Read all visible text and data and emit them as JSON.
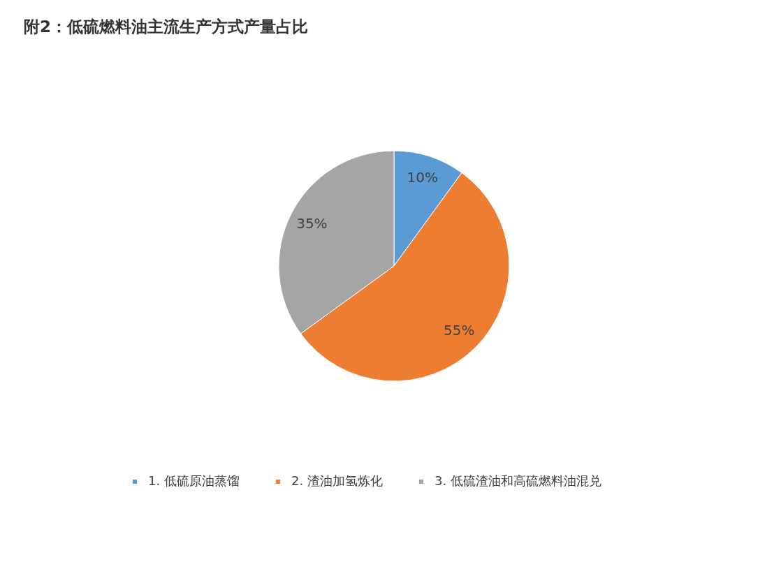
{
  "chart_data": {
    "type": "pie",
    "title": "附2：低硫燃料油主流生产方式产量占比",
    "categories": [
      "1.  低硫原油蒸馏",
      "2.  渣油加氢炼化",
      "3.  低硫渣油和高硫燃料油混兑"
    ],
    "values": [
      10,
      55,
      35
    ],
    "value_labels": [
      "10%",
      "55%",
      "35%"
    ],
    "colors": [
      "#5b9bd5",
      "#ed7d31",
      "#a5a5a5"
    ],
    "legend": "bottom"
  }
}
